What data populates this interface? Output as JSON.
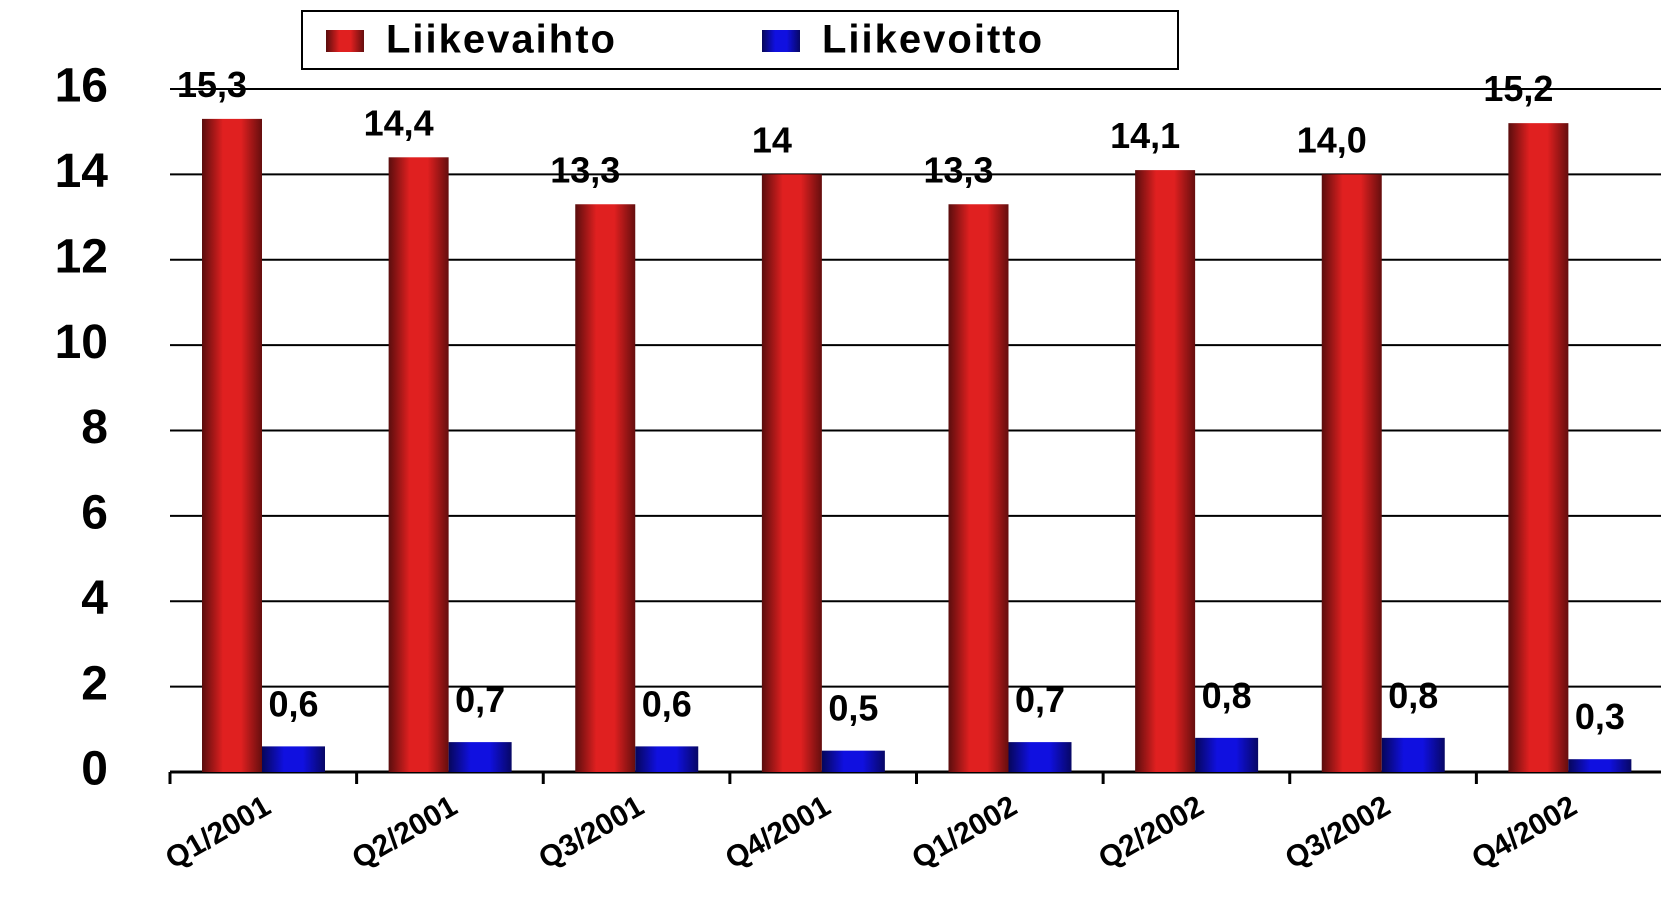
{
  "chart_data": {
    "type": "bar",
    "categories": [
      "Q1/2001",
      "Q2/2001",
      "Q3/2001",
      "Q4/2001",
      "Q1/2002",
      "Q2/2002",
      "Q3/2002",
      "Q4/2002"
    ],
    "series": [
      {
        "name": "Liikevaihto",
        "color": "#e02020",
        "values": [
          15.3,
          14.4,
          13.3,
          14,
          13.3,
          14.1,
          14.0,
          15.2
        ],
        "value_labels": [
          "15,3",
          "14,4",
          "13,3",
          "14",
          "13,3",
          "14,1",
          "14,0",
          "15,2"
        ]
      },
      {
        "name": "Liikevoitto",
        "color": "#1010e0",
        "values": [
          0.6,
          0.7,
          0.6,
          0.5,
          0.7,
          0.8,
          0.8,
          0.3
        ],
        "value_labels": [
          "0,6",
          "0,7",
          "0,6",
          "0,5",
          "0,7",
          "0,8",
          "0,8",
          "0,3"
        ]
      }
    ],
    "ylim": [
      0,
      16
    ],
    "yticks": [
      0,
      2,
      4,
      6,
      8,
      10,
      12,
      14,
      16
    ],
    "grid": true,
    "legend": "top"
  }
}
